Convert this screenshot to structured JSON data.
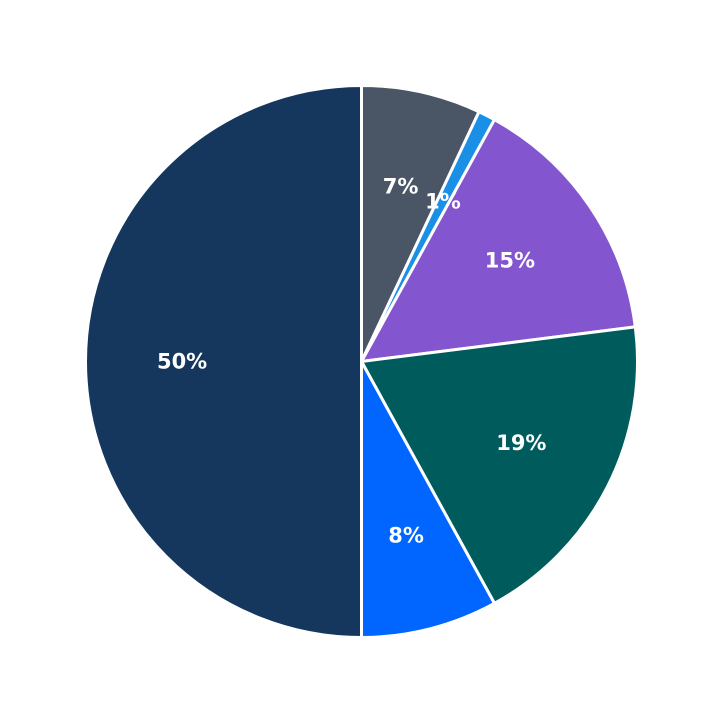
{
  "chart_data": {
    "type": "pie",
    "start_angle": "12 o'clock",
    "direction": "clockwise",
    "slices": [
      {
        "label": "7%",
        "value": 7,
        "color": "#4a5565"
      },
      {
        "label": "1%",
        "value": 1,
        "color": "#1a8fe6"
      },
      {
        "label": "15%",
        "value": 15,
        "color": "#8356cf"
      },
      {
        "label": "19%",
        "value": 19,
        "color": "#005c5c"
      },
      {
        "label": "8%",
        "value": 8,
        "color": "#0066ff"
      },
      {
        "label": "50%",
        "value": 50,
        "color": "#15375e"
      }
    ],
    "slice_border_color": "#ffffff"
  }
}
